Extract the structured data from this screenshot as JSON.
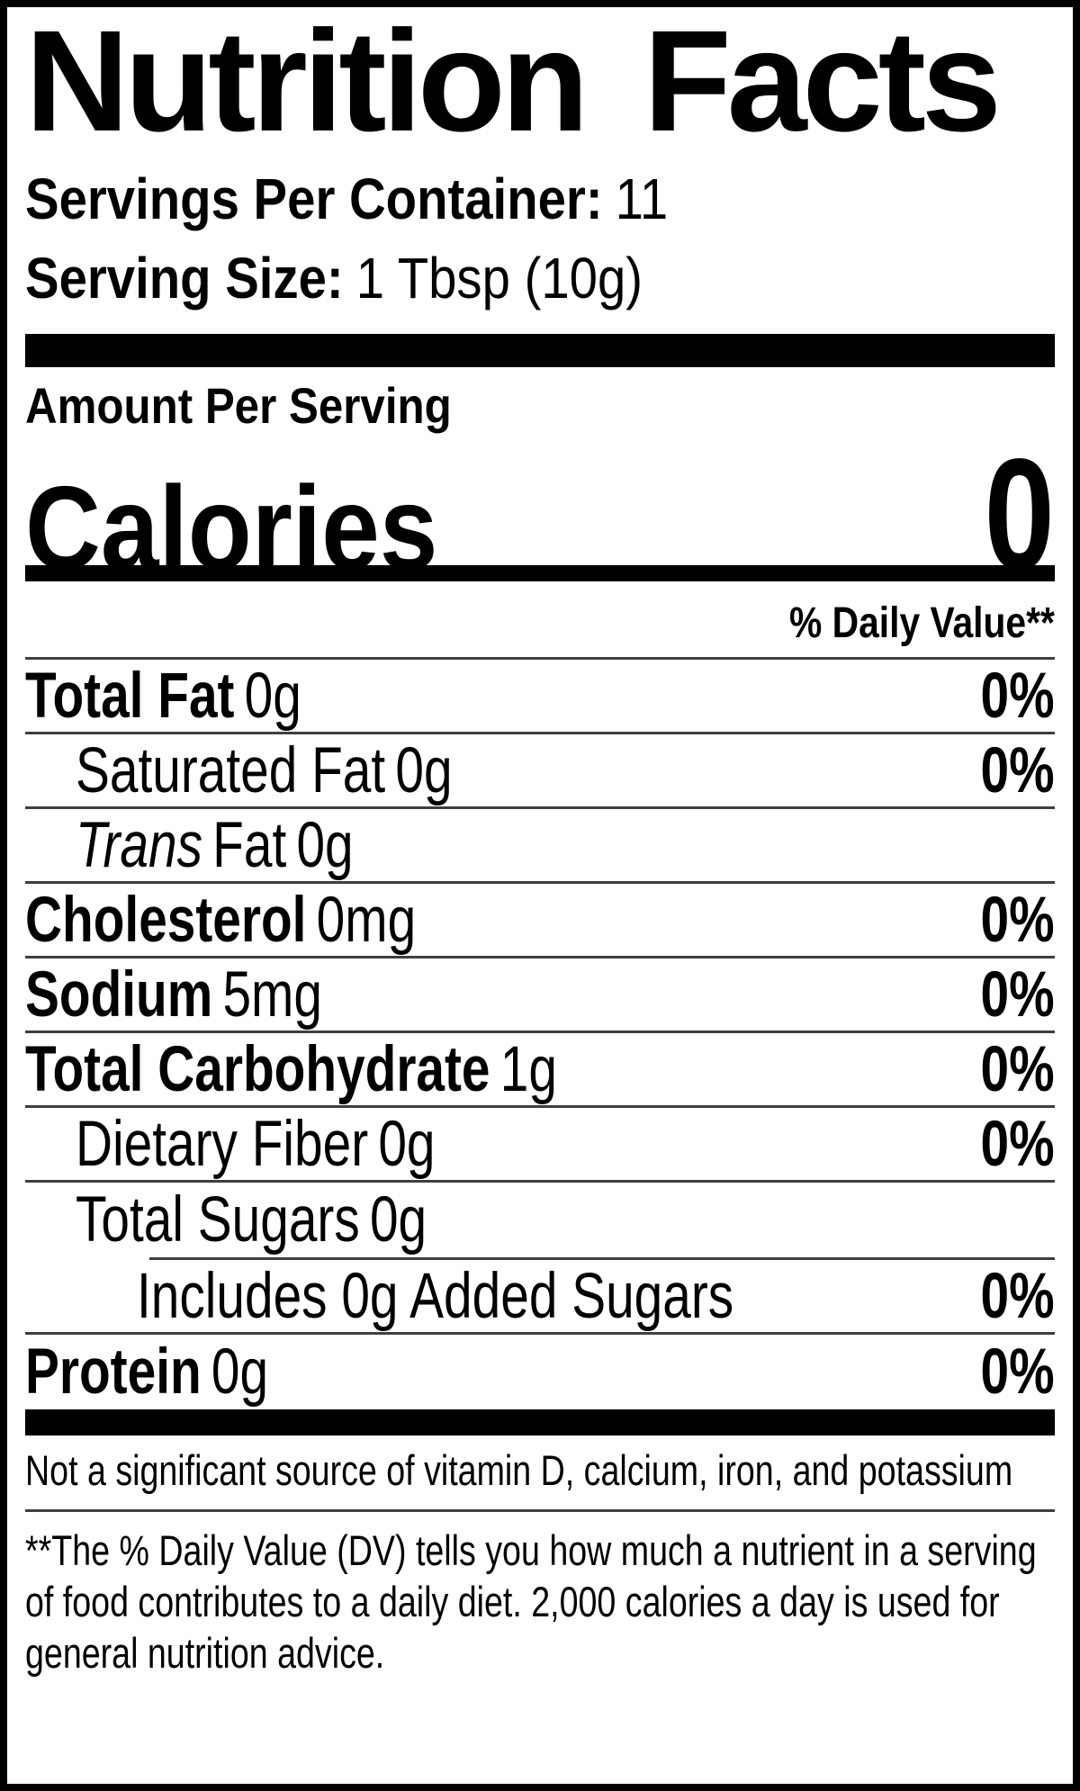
{
  "label": {
    "title": "Nutrition Facts",
    "servings_label": "Servings Per Container:",
    "servings_value": "11",
    "serving_size_label": "Serving Size:",
    "serving_size_value": "1 Tbsp (10g)",
    "amount_per_serving": "Amount Per Serving",
    "calories_label": "Calories",
    "calories_value": "0",
    "daily_value_header": "% Daily Value**",
    "rows": [
      {
        "name": "Total Fat",
        "amount": "0g",
        "dv": "0%"
      },
      {
        "name": "Saturated Fat",
        "amount": "0g",
        "dv": "0%"
      },
      {
        "name_italic": "Trans",
        "name": "Fat",
        "amount": "0g",
        "dv": ""
      },
      {
        "name": "Cholesterol",
        "amount": "0mg",
        "dv": "0%"
      },
      {
        "name": "Sodium",
        "amount": "5mg",
        "dv": "0%"
      },
      {
        "name": "Total Carbohydrate",
        "amount": "1g",
        "dv": "0%"
      },
      {
        "name": "Dietary Fiber",
        "amount": "0g",
        "dv": "0%"
      },
      {
        "name": "Total Sugars",
        "amount": "0g",
        "dv": ""
      },
      {
        "name": "Includes 0g Added Sugars",
        "amount": "",
        "dv": "0%"
      },
      {
        "name": "Protein",
        "amount": "0g",
        "dv": "0%"
      }
    ],
    "not_significant": "Not a significant source of vitamin D, calcium, iron, and potassium",
    "footnote": "**The % Daily Value (DV) tells you how much a nutrient in a serving of food contributes to a daily diet. 2,000 calories a day is used for general nutrition advice."
  },
  "colors": {
    "text": "#000000",
    "background": "#ffffff",
    "divider": "#3f3f3f",
    "bar": "#000000"
  }
}
